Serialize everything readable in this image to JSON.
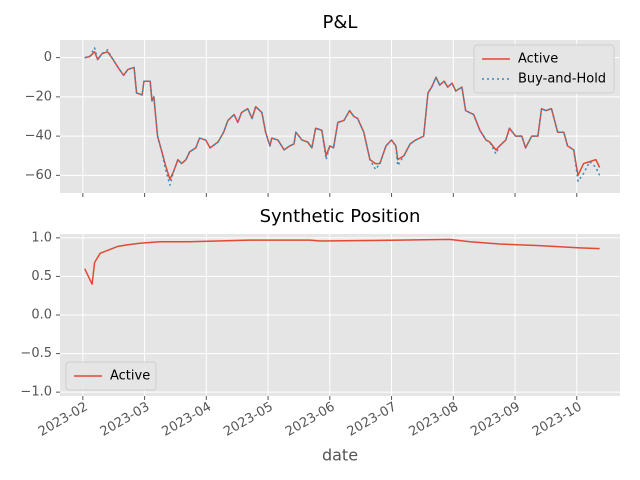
{
  "chart_data": [
    {
      "type": "line",
      "title": "P&L",
      "x": [
        2.03,
        2.11,
        2.19,
        2.24,
        2.31,
        2.4,
        2.47,
        2.57,
        2.66,
        2.73,
        2.83,
        2.87,
        2.96,
        2.99,
        3.09,
        3.12,
        3.15,
        3.21,
        3.28,
        3.34,
        3.41,
        3.47,
        3.54,
        3.6,
        3.67,
        3.73,
        3.83,
        3.89,
        3.99,
        4.06,
        4.19,
        4.28,
        4.35,
        4.45,
        4.51,
        4.57,
        4.67,
        4.74,
        4.8,
        4.9,
        4.96,
        5.03,
        5.06,
        5.16,
        5.26,
        5.35,
        5.42,
        5.45,
        5.55,
        5.64,
        5.71,
        5.77,
        5.87,
        5.94,
        6.0,
        6.06,
        6.13,
        6.23,
        6.32,
        6.39,
        6.45,
        6.55,
        6.65,
        6.74,
        6.81,
        6.91,
        7.0,
        7.07,
        7.1,
        7.2,
        7.3,
        7.39,
        7.52,
        7.59,
        7.65,
        7.72,
        7.78,
        7.85,
        7.91,
        7.98,
        8.04,
        8.14,
        8.2,
        8.33,
        8.43,
        8.53,
        8.59,
        8.69,
        8.75,
        8.85,
        8.91,
        9.01,
        9.11,
        9.17,
        9.27,
        9.37,
        9.43,
        9.5,
        9.59,
        9.69,
        9.79,
        9.85,
        9.95,
        10.02,
        10.11,
        10.21,
        10.31,
        10.37
      ],
      "series": [
        {
          "name": "Active",
          "color": "#E24A33",
          "dash": "solid",
          "values": [
            0,
            0.5,
            3,
            -1,
            2,
            3,
            0,
            -5,
            -9,
            -6,
            -5,
            -18,
            -19,
            -12,
            -12,
            -22,
            -20,
            -40,
            -48,
            -55,
            -62,
            -58,
            -52,
            -54,
            -52,
            -48,
            -46,
            -41,
            -42,
            -46,
            -43,
            -38,
            -32,
            -29,
            -33,
            -28,
            -26,
            -31,
            -25,
            -28,
            -38,
            -45,
            -41,
            -42,
            -47,
            -45,
            -44,
            -38,
            -42,
            -43,
            -46,
            -36,
            -37,
            -50,
            -45,
            -46,
            -33,
            -32,
            -27,
            -30,
            -31,
            -38,
            -52,
            -54,
            -54,
            -45,
            -42,
            -45,
            -52,
            -50,
            -44,
            -42,
            -40,
            -18,
            -15,
            -10,
            -14,
            -12,
            -15,
            -13,
            -17,
            -15,
            -27,
            -29,
            -37,
            -42,
            -43,
            -47,
            -45,
            -42,
            -36,
            -40,
            -40,
            -46,
            -40,
            -40,
            -26,
            -27,
            -26,
            -38,
            -38,
            -45,
            -47,
            -60,
            -54,
            -53,
            -52,
            -56
          ]
        },
        {
          "name": "Buy-and-Hold",
          "color": "#348ABD",
          "dash": "dotted",
          "values": [
            0,
            0.5,
            5,
            -1,
            2,
            4,
            0,
            -5,
            -9,
            -6,
            -5,
            -18,
            -19,
            -12,
            -12,
            -22,
            -20,
            -40,
            -48,
            -57,
            -65,
            -58,
            -52,
            -54,
            -52,
            -48,
            -46,
            -41,
            -42,
            -46,
            -43,
            -38,
            -32,
            -29,
            -33,
            -28,
            -26,
            -31,
            -25,
            -28,
            -38,
            -45,
            -41,
            -42,
            -47,
            -45,
            -44,
            -38,
            -42,
            -43,
            -46,
            -36,
            -37,
            -52,
            -45,
            -46,
            -33,
            -32,
            -27,
            -30,
            -31,
            -38,
            -52,
            -57,
            -54,
            -45,
            -42,
            -45,
            -55,
            -50,
            -44,
            -42,
            -40,
            -18,
            -15,
            -10,
            -14,
            -12,
            -15,
            -13,
            -17,
            -15,
            -27,
            -29,
            -37,
            -42,
            -43,
            -49,
            -45,
            -42,
            -36,
            -40,
            -40,
            -46,
            -40,
            -40,
            -26,
            -27,
            -26,
            -38,
            -38,
            -45,
            -47,
            -63,
            -59,
            -53,
            -56,
            -60
          ]
        }
      ],
      "xlim": [
        1.63,
        10.7
      ],
      "ylim": [
        -69,
        9
      ],
      "yticks": [
        0,
        {
          "value": -20,
          "label": "−20"
        },
        {
          "value": -40,
          "label": "−40"
        },
        {
          "value": -60,
          "label": "−60"
        }
      ],
      "grid": true,
      "legend": "upper right"
    },
    {
      "type": "line",
      "title": "Synthetic Position",
      "xlabel": "date",
      "x": [
        2.03,
        2.15,
        2.19,
        2.28,
        2.44,
        2.57,
        2.73,
        2.92,
        3.25,
        3.73,
        4.7,
        5.68,
        5.84,
        7.13,
        7.94,
        8.27,
        8.75,
        9.4,
        10.05,
        10.37
      ],
      "series": [
        {
          "name": "Active",
          "color": "#E24A33",
          "dash": "solid",
          "values": [
            0.6,
            0.4,
            0.68,
            0.8,
            0.85,
            0.89,
            0.91,
            0.93,
            0.95,
            0.95,
            0.97,
            0.97,
            0.96,
            0.97,
            0.98,
            0.95,
            0.92,
            0.9,
            0.87,
            0.86
          ]
        }
      ],
      "xlim": [
        1.63,
        10.7
      ],
      "ylim": [
        -1.05,
        1.05
      ],
      "xticks": [
        {
          "value": 2,
          "label": "2023-02"
        },
        {
          "value": 3,
          "label": "2023-03"
        },
        {
          "value": 4,
          "label": "2023-04"
        },
        {
          "value": 5,
          "label": "2023-05"
        },
        {
          "value": 6,
          "label": "2023-06"
        },
        {
          "value": 7,
          "label": "2023-07"
        },
        {
          "value": 8,
          "label": "2023-08"
        },
        {
          "value": 9,
          "label": "2023-09"
        },
        {
          "value": 10,
          "label": "2023-10"
        }
      ],
      "yticks": [
        {
          "value": -1,
          "label": "−1.0"
        },
        {
          "value": -0.5,
          "label": "−0.5"
        },
        {
          "value": 0,
          "label": "0.0"
        },
        {
          "value": 0.5,
          "label": "0.5"
        },
        {
          "value": 1,
          "label": "1.0"
        }
      ],
      "grid": true,
      "legend": "lower left"
    }
  ]
}
